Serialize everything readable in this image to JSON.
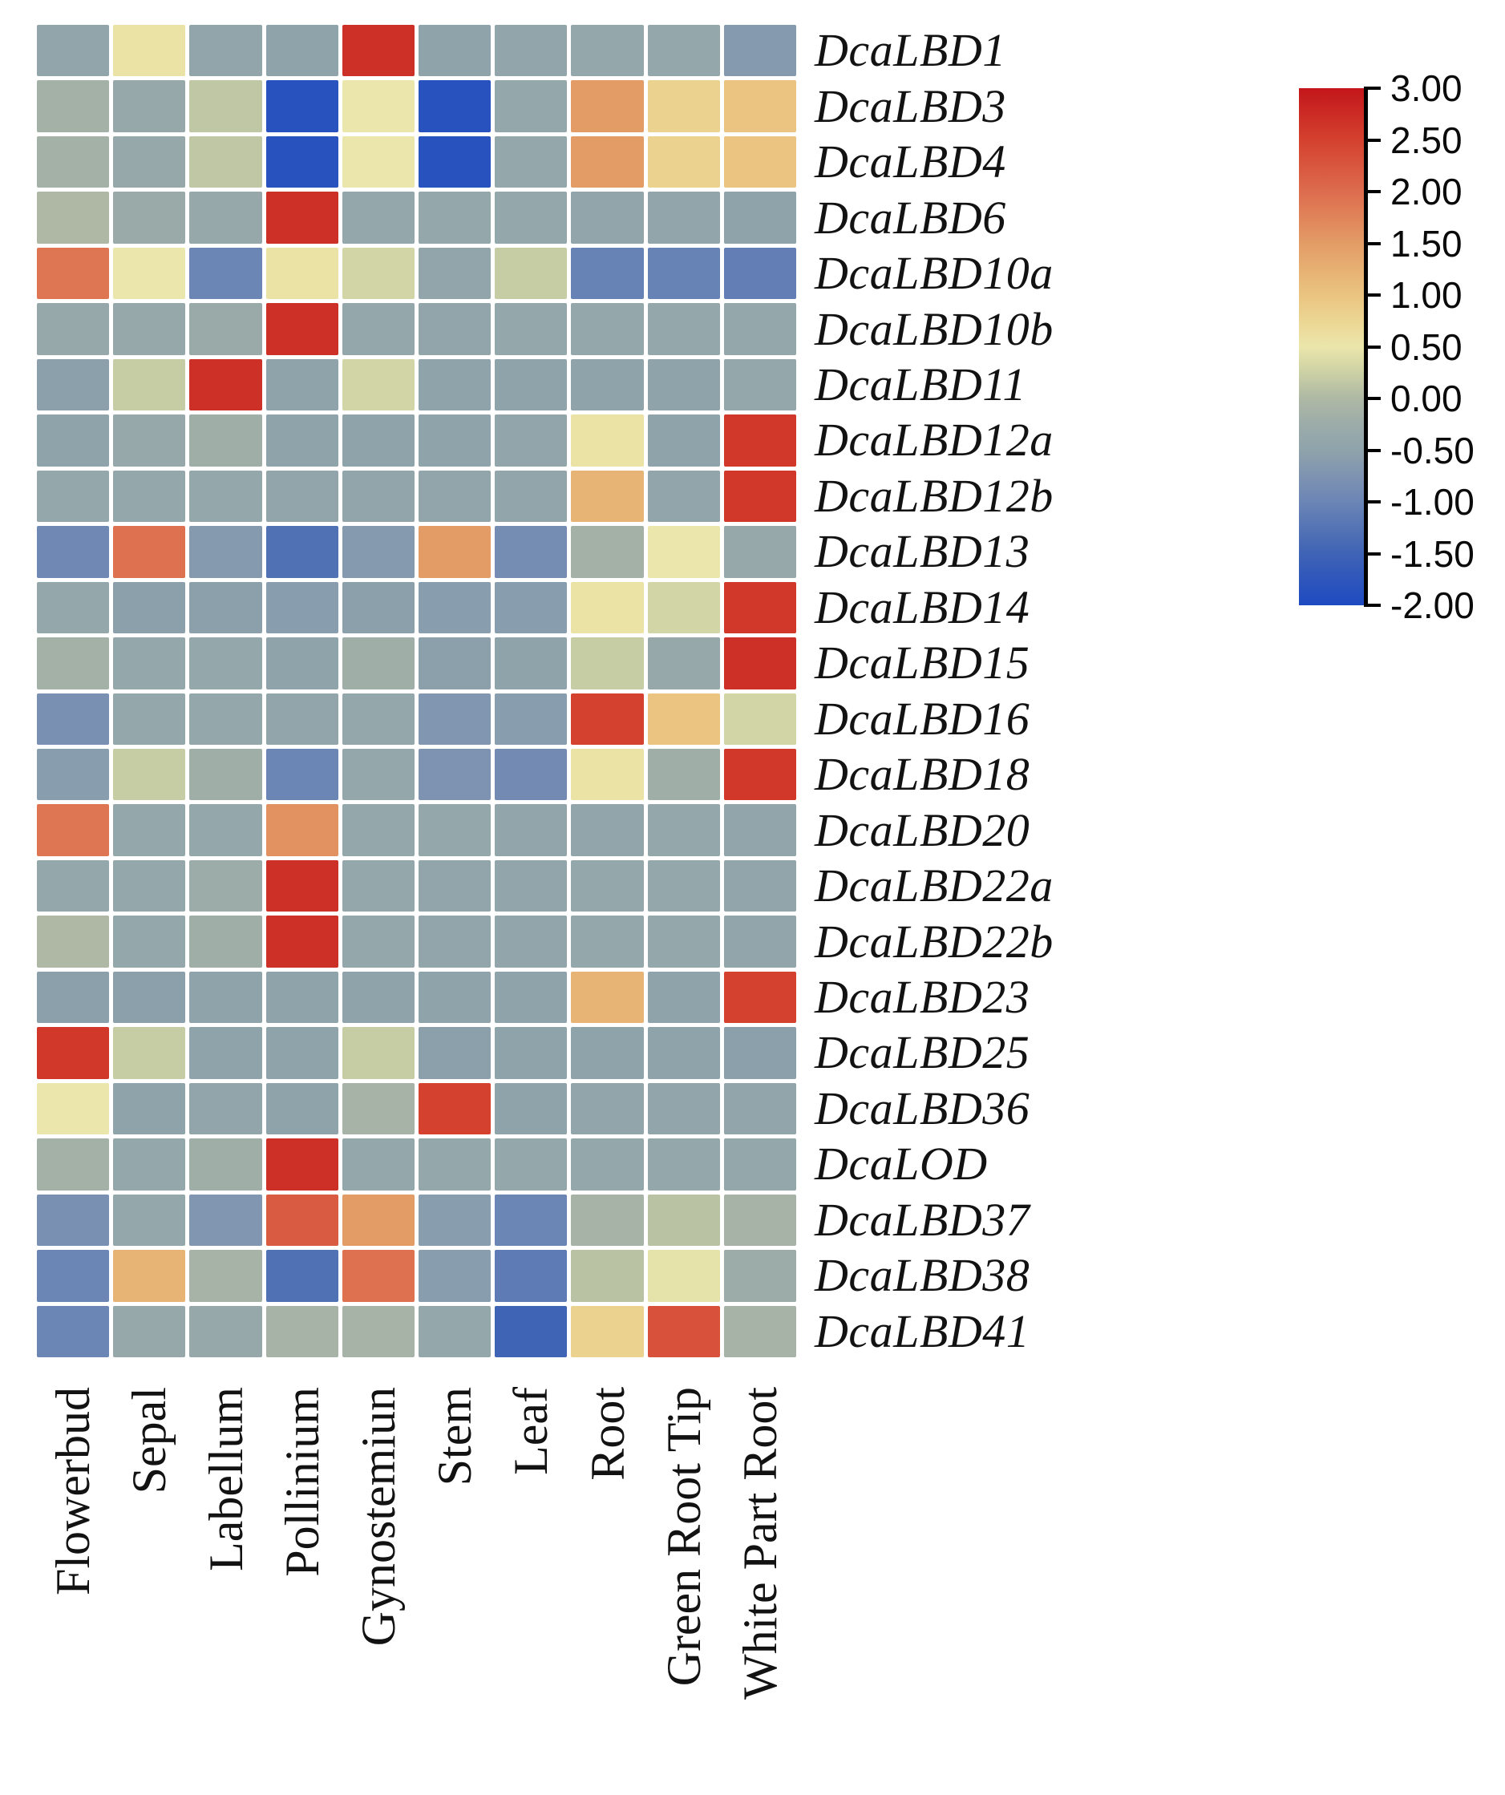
{
  "chart_data": {
    "type": "heatmap",
    "title": "",
    "rows": [
      "DcaLBD1",
      "DcaLBD3",
      "DcaLBD4",
      "DcaLBD6",
      "DcaLBD10a",
      "DcaLBD10b",
      "DcaLBD11",
      "DcaLBD12a",
      "DcaLBD12b",
      "DcaLBD13",
      "DcaLBD14",
      "DcaLBD15",
      "DcaLBD16",
      "DcaLBD18",
      "DcaLBD20",
      "DcaLBD22a",
      "DcaLBD22b",
      "DcaLBD23",
      "DcaLBD25",
      "DcaLBD36",
      "DcaLOD",
      "DcaLBD37",
      "DcaLBD38",
      "DcaLBD41"
    ],
    "columns": [
      "Flowerbud",
      "Sepal",
      "Labellum",
      "Pollinium",
      "Gynostemiun",
      "Stem",
      "Leaf",
      "Root",
      "Green Root Tip",
      "White Part Root"
    ],
    "values": [
      [
        -0.45,
        0.55,
        -0.45,
        -0.5,
        2.7,
        -0.5,
        -0.45,
        -0.4,
        -0.4,
        -0.65
      ],
      [
        -0.15,
        -0.35,
        0.15,
        -1.85,
        0.5,
        -1.85,
        -0.4,
        1.5,
        0.8,
        1.0
      ],
      [
        -0.15,
        -0.35,
        0.15,
        -1.85,
        0.5,
        -1.85,
        -0.4,
        1.5,
        0.8,
        1.0
      ],
      [
        0.0,
        -0.3,
        -0.35,
        2.7,
        -0.4,
        -0.4,
        -0.4,
        -0.45,
        -0.45,
        -0.5
      ],
      [
        1.9,
        0.5,
        -1.0,
        0.55,
        0.3,
        -0.45,
        0.2,
        -1.05,
        -1.05,
        -1.1
      ],
      [
        -0.35,
        -0.35,
        -0.3,
        2.7,
        -0.4,
        -0.45,
        -0.4,
        -0.4,
        -0.4,
        -0.4
      ],
      [
        -0.55,
        0.2,
        2.7,
        -0.5,
        0.3,
        -0.5,
        -0.5,
        -0.5,
        -0.5,
        -0.4
      ],
      [
        -0.5,
        -0.35,
        -0.2,
        -0.5,
        -0.5,
        -0.5,
        -0.45,
        0.55,
        -0.5,
        2.6
      ],
      [
        -0.4,
        -0.4,
        -0.4,
        -0.45,
        -0.45,
        -0.45,
        -0.45,
        1.2,
        -0.45,
        2.6
      ],
      [
        -0.95,
        1.95,
        -0.65,
        -1.3,
        -0.65,
        1.5,
        -0.85,
        -0.15,
        0.5,
        -0.35
      ],
      [
        -0.4,
        -0.55,
        -0.55,
        -0.6,
        -0.55,
        -0.6,
        -0.6,
        0.55,
        0.3,
        2.6
      ],
      [
        -0.15,
        -0.4,
        -0.4,
        -0.5,
        -0.2,
        -0.55,
        -0.5,
        0.2,
        -0.35,
        2.7
      ],
      [
        -0.8,
        -0.4,
        -0.4,
        -0.45,
        -0.4,
        -0.7,
        -0.6,
        2.5,
        1.0,
        0.3
      ],
      [
        -0.6,
        0.2,
        -0.2,
        -1.0,
        -0.4,
        -0.75,
        -0.9,
        0.55,
        -0.2,
        2.6
      ],
      [
        1.9,
        -0.4,
        -0.4,
        1.6,
        -0.4,
        -0.4,
        -0.45,
        -0.45,
        -0.4,
        -0.45
      ],
      [
        -0.4,
        -0.4,
        -0.25,
        2.7,
        -0.4,
        -0.45,
        -0.45,
        -0.4,
        -0.4,
        -0.45
      ],
      [
        0.0,
        -0.4,
        -0.2,
        2.7,
        -0.4,
        -0.45,
        -0.45,
        -0.4,
        -0.4,
        -0.45
      ],
      [
        -0.55,
        -0.55,
        -0.5,
        -0.5,
        -0.5,
        -0.5,
        -0.5,
        1.2,
        -0.5,
        2.5
      ],
      [
        2.6,
        0.2,
        -0.5,
        -0.5,
        0.2,
        -0.55,
        -0.5,
        -0.5,
        -0.5,
        -0.55
      ],
      [
        0.5,
        -0.5,
        -0.45,
        -0.5,
        -0.1,
        2.5,
        -0.5,
        -0.45,
        -0.45,
        -0.45
      ],
      [
        -0.15,
        -0.4,
        -0.2,
        2.7,
        -0.4,
        -0.4,
        -0.4,
        -0.4,
        -0.4,
        -0.4
      ],
      [
        -0.8,
        -0.4,
        -0.7,
        2.2,
        1.5,
        -0.6,
        -1.0,
        -0.1,
        0.1,
        -0.1
      ],
      [
        -1.0,
        1.2,
        -0.1,
        -1.3,
        1.95,
        -0.6,
        -1.15,
        0.1,
        0.45,
        -0.25
      ],
      [
        -1.0,
        -0.35,
        -0.35,
        -0.1,
        -0.1,
        -0.4,
        -1.5,
        0.8,
        2.3,
        -0.1
      ]
    ],
    "colorbar": {
      "vmin": -2.0,
      "vmax": 3.0,
      "tick_labels": [
        "3.00",
        "2.50",
        "2.00",
        "1.50",
        "1.00",
        "0.50",
        "0.00",
        "-0.50",
        "-1.00",
        "-1.50",
        "-2.00"
      ],
      "tick_values": [
        3.0,
        2.5,
        2.0,
        1.5,
        1.0,
        0.5,
        0.0,
        -0.5,
        -1.0,
        -1.5,
        -2.0
      ],
      "colormap_stops": [
        {
          "v": 3.0,
          "c": "#c3161b"
        },
        {
          "v": 2.5,
          "c": "#d4412e"
        },
        {
          "v": 2.0,
          "c": "#dd6c4e"
        },
        {
          "v": 1.5,
          "c": "#e39c66"
        },
        {
          "v": 1.0,
          "c": "#eac480"
        },
        {
          "v": 0.75,
          "c": "#ecd693"
        },
        {
          "v": 0.5,
          "c": "#ebe6ab"
        },
        {
          "v": 0.25,
          "c": "#ccd1a4"
        },
        {
          "v": 0.0,
          "c": "#aeb8a4"
        },
        {
          "v": -0.25,
          "c": "#9caca9"
        },
        {
          "v": -0.5,
          "c": "#8fa3ab"
        },
        {
          "v": -0.75,
          "c": "#7e93b1"
        },
        {
          "v": -1.0,
          "c": "#6b85b5"
        },
        {
          "v": -1.5,
          "c": "#3f63b5"
        },
        {
          "v": -2.0,
          "c": "#1e4ac1"
        }
      ]
    },
    "layout": {
      "grid_gap_color": "#ffffff",
      "legend_position": "right",
      "x_labels_rotation_deg": 90,
      "row_label_style": "italic"
    }
  }
}
